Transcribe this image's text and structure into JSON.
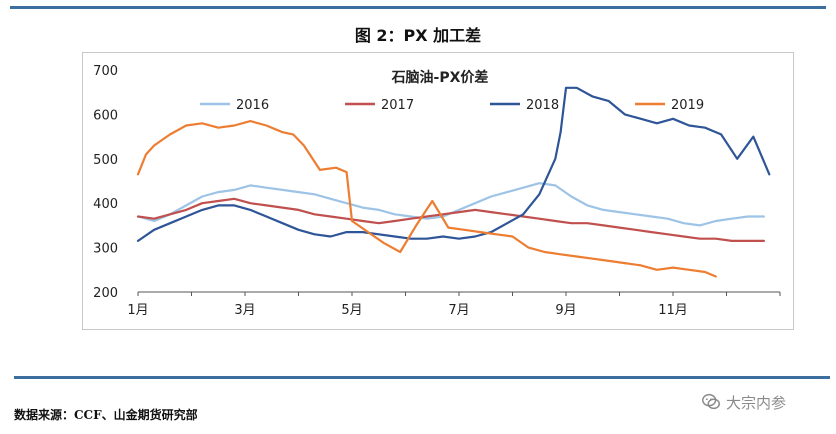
{
  "figure": {
    "title": "图 2：PX 加工差",
    "source": "数据来源：CCF、山金期货研究部",
    "watermark": "大宗内参",
    "watermark_icon": "wechat-icon"
  },
  "chart_data": {
    "type": "line",
    "title": "石脑油-PX价差",
    "xlabel": "",
    "ylabel": "",
    "ylim": [
      200,
      700
    ],
    "xlim": [
      0,
      12
    ],
    "yticks": [
      200,
      300,
      400,
      500,
      600,
      700
    ],
    "xticks": [
      {
        "value": 0,
        "label": "1月"
      },
      {
        "value": 2,
        "label": "3月"
      },
      {
        "value": 4,
        "label": "5月"
      },
      {
        "value": 6,
        "label": "7月"
      },
      {
        "value": 8,
        "label": "9月"
      },
      {
        "value": 10,
        "label": "11月"
      }
    ],
    "grid": false,
    "legend_position": "top",
    "series": [
      {
        "name": "2016",
        "color": "#9dc3e6",
        "x": [
          0,
          0.3,
          0.6,
          0.9,
          1.2,
          1.5,
          1.8,
          2.1,
          2.4,
          2.7,
          3.0,
          3.3,
          3.6,
          3.9,
          4.2,
          4.5,
          4.8,
          5.1,
          5.4,
          5.7,
          6.0,
          6.3,
          6.6,
          6.9,
          7.2,
          7.5,
          7.8,
          8.1,
          8.4,
          8.7,
          9.0,
          9.3,
          9.6,
          9.9,
          10.2,
          10.5,
          10.8,
          11.1,
          11.4,
          11.7
        ],
        "y": [
          370,
          360,
          375,
          395,
          415,
          425,
          430,
          440,
          435,
          430,
          425,
          420,
          410,
          400,
          390,
          385,
          375,
          370,
          365,
          370,
          385,
          400,
          415,
          425,
          435,
          445,
          440,
          415,
          395,
          385,
          380,
          375,
          370,
          365,
          355,
          350,
          360,
          365,
          370,
          370
        ]
      },
      {
        "name": "2017",
        "color": "#c0504d",
        "x": [
          0,
          0.3,
          0.6,
          0.9,
          1.2,
          1.5,
          1.8,
          2.1,
          2.4,
          2.7,
          3.0,
          3.3,
          3.6,
          3.9,
          4.2,
          4.5,
          4.8,
          5.1,
          5.4,
          5.7,
          6.0,
          6.3,
          6.6,
          6.9,
          7.2,
          7.5,
          7.8,
          8.1,
          8.4,
          8.7,
          9.0,
          9.3,
          9.6,
          9.9,
          10.2,
          10.5,
          10.8,
          11.1,
          11.4,
          11.7
        ],
        "y": [
          370,
          365,
          375,
          385,
          400,
          405,
          410,
          400,
          395,
          390,
          385,
          375,
          370,
          365,
          360,
          355,
          360,
          365,
          370,
          375,
          380,
          385,
          380,
          375,
          370,
          365,
          360,
          355,
          355,
          350,
          345,
          340,
          335,
          330,
          325,
          320,
          320,
          315,
          315,
          315
        ]
      },
      {
        "name": "2018",
        "color": "#2e5597",
        "x": [
          0,
          0.3,
          0.6,
          0.9,
          1.2,
          1.5,
          1.8,
          2.1,
          2.4,
          2.7,
          3.0,
          3.3,
          3.6,
          3.9,
          4.2,
          4.5,
          4.8,
          5.1,
          5.4,
          5.7,
          6.0,
          6.3,
          6.6,
          6.9,
          7.2,
          7.5,
          7.8,
          7.9,
          8.0,
          8.2,
          8.5,
          8.8,
          9.1,
          9.4,
          9.7,
          10.0,
          10.3,
          10.6,
          10.9,
          11.2,
          11.5,
          11.8
        ],
        "y": [
          315,
          340,
          355,
          370,
          385,
          395,
          395,
          385,
          370,
          355,
          340,
          330,
          325,
          335,
          335,
          330,
          325,
          320,
          320,
          325,
          320,
          325,
          335,
          355,
          375,
          420,
          500,
          560,
          660,
          660,
          640,
          630,
          600,
          590,
          580,
          590,
          575,
          570,
          555,
          500,
          550,
          465
        ]
      },
      {
        "name": "2019",
        "color": "#ed7d31",
        "x": [
          0,
          0.15,
          0.3,
          0.6,
          0.9,
          1.2,
          1.5,
          1.8,
          2.1,
          2.4,
          2.7,
          2.9,
          3.1,
          3.4,
          3.7,
          3.9,
          4.0,
          4.3,
          4.6,
          4.9,
          5.2,
          5.5,
          5.8,
          6.1,
          6.4,
          6.7,
          7.0,
          7.3,
          7.6,
          7.9,
          8.2,
          8.5,
          8.8,
          9.1,
          9.4,
          9.7,
          10.0,
          10.3,
          10.6,
          10.8
        ],
        "y": [
          465,
          510,
          530,
          555,
          575,
          580,
          570,
          575,
          585,
          575,
          560,
          555,
          530,
          475,
          480,
          470,
          360,
          335,
          310,
          290,
          350,
          405,
          345,
          340,
          335,
          330,
          325,
          300,
          290,
          285,
          280,
          275,
          270,
          265,
          260,
          250,
          255,
          250,
          245,
          235
        ]
      }
    ]
  }
}
